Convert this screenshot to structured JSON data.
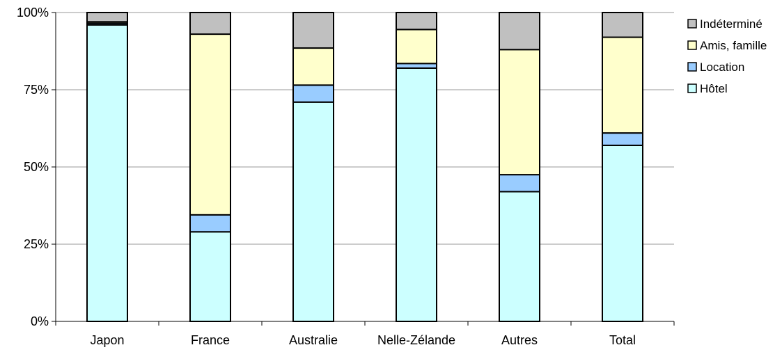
{
  "chart_data": {
    "type": "bar",
    "stacked": "percent",
    "categories": [
      "Japon",
      "France",
      "Australie",
      "Nelle-Zélande",
      "Autres",
      "Total"
    ],
    "series": [
      {
        "name": "Hôtel",
        "color": "#ccffff",
        "values": [
          96,
          29,
          71,
          82,
          42,
          57
        ]
      },
      {
        "name": "Location",
        "color": "#99ccff",
        "values": [
          0.5,
          5.5,
          5.5,
          1.5,
          5.5,
          4
        ]
      },
      {
        "name": "Amis, famille",
        "color": "#ffffcc",
        "values": [
          0.5,
          58.5,
          12,
          11,
          40.5,
          31
        ]
      },
      {
        "name": "Indéterminé",
        "color": "#c0c0c0",
        "values": [
          3,
          7,
          11.5,
          5.5,
          12,
          8
        ]
      }
    ],
    "y_ticks": [
      "0%",
      "25%",
      "50%",
      "75%",
      "100%"
    ],
    "ylim": [
      0,
      100
    ],
    "grid": true,
    "legend_position": "right",
    "xlabel": "",
    "ylabel": ""
  }
}
